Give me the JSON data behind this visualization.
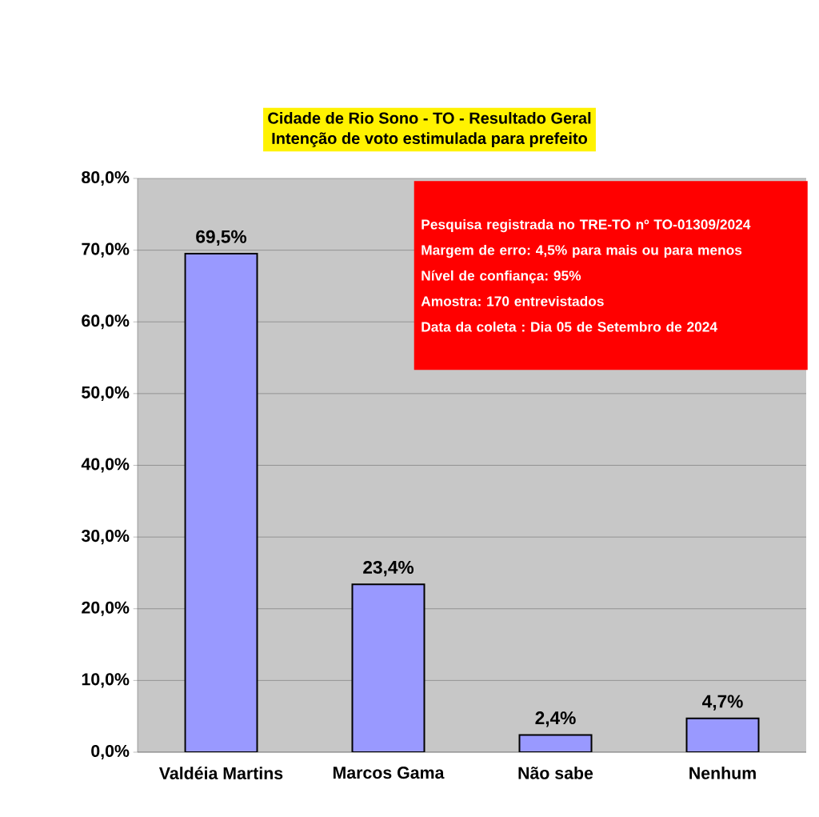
{
  "chart_data": {
    "type": "bar",
    "title": "Cidade de Rio Sono - TO - Resultado Geral",
    "subtitle": "Intenção de voto estimulada para prefeito",
    "categories": [
      "Valdéia Martins",
      "Marcos Gama",
      "Não sabe",
      "Nenhum"
    ],
    "values": [
      69.5,
      23.4,
      2.4,
      4.7
    ],
    "value_labels": [
      "69,5%",
      "23,4%",
      "2,4%",
      "4,7%"
    ],
    "color": "#9999ff",
    "ylim": [
      0,
      80
    ],
    "yticks": [
      {
        "value": 0,
        "label": "0,0%"
      },
      {
        "value": 10,
        "label": "10,0%"
      },
      {
        "value": 20,
        "label": "20,0%"
      },
      {
        "value": 30,
        "label": "30,0%"
      },
      {
        "value": 40,
        "label": "40,0%"
      },
      {
        "value": 50,
        "label": "50,0%"
      },
      {
        "value": 60,
        "label": "60,0%"
      },
      {
        "value": 70,
        "label": "70,0%"
      },
      {
        "value": 80,
        "label": "80,0%"
      }
    ],
    "grid": "y",
    "annotations": [
      "Pesquisa registrada no TRE-TO nº TO-01309/2024",
      "Margem de erro: 4,5% para mais ou para menos",
      "Nível de confiança: 95%",
      "Amostra: 170 entrevistados",
      "Data da coleta : Dia 05 de Setembro de 2024"
    ]
  }
}
